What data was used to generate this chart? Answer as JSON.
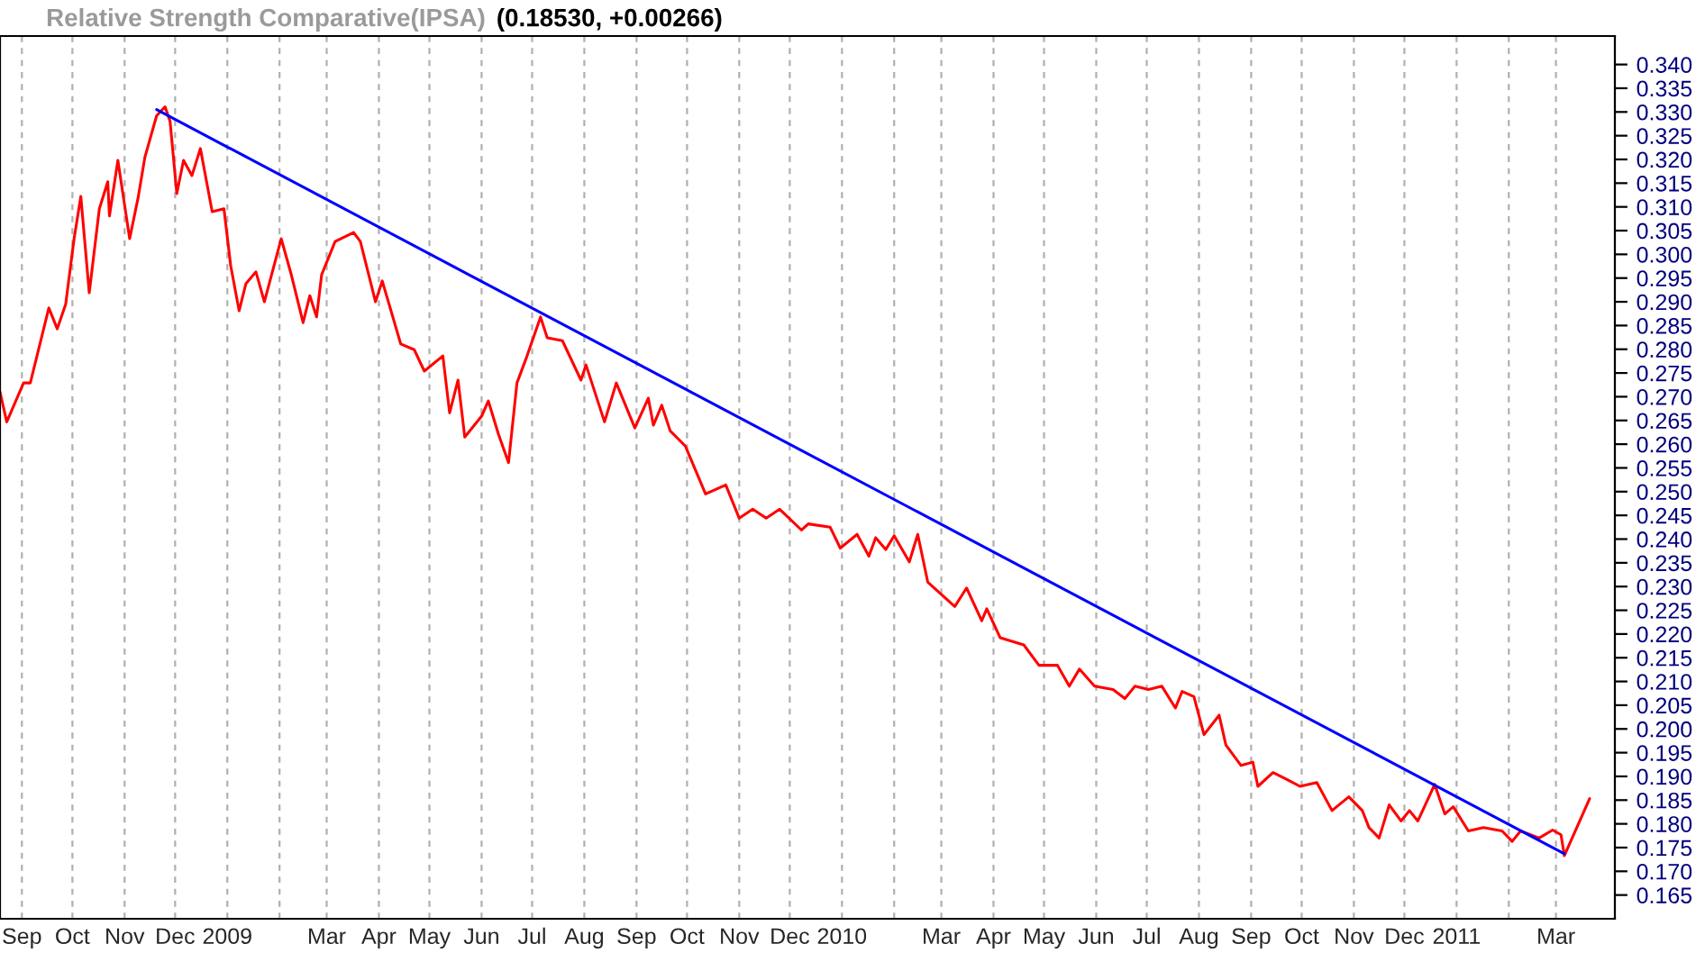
{
  "chart_data": {
    "type": "line",
    "title": "Relative Strength Comparative(IPSA)",
    "subtitle": "(0.18530, +0.00266)",
    "series": [
      {
        "color": "#ff0000",
        "x": [
          "2008-08-19",
          "2008-08-23",
          "2008-09-02",
          "2008-09-06",
          "2008-09-17",
          "2008-09-22",
          "2008-09-27",
          "2008-10-02",
          "2008-10-06",
          "2008-10-11",
          "2008-10-17",
          "2008-10-22",
          "2008-10-23",
          "2008-10-28",
          "2008-11-04",
          "2008-11-09",
          "2008-11-13",
          "2008-11-20",
          "2008-11-25",
          "2008-11-28",
          "2008-12-02",
          "2008-12-06",
          "2008-12-11",
          "2008-12-16",
          "2008-12-23",
          "2008-12-30",
          "2009-01-03",
          "2009-01-08",
          "2009-01-12",
          "2009-01-18",
          "2009-01-23",
          "2009-02-02",
          "2009-02-08",
          "2009-02-15",
          "2009-02-19",
          "2009-02-23",
          "2009-02-26",
          "2009-03-06",
          "2009-03-17",
          "2009-03-21",
          "2009-03-30",
          "2009-04-03",
          "2009-04-14",
          "2009-04-22",
          "2009-04-28",
          "2009-05-09",
          "2009-05-13",
          "2009-05-18",
          "2009-05-22",
          "2009-06-01",
          "2009-06-05",
          "2009-06-11",
          "2009-06-17",
          "2009-06-22",
          "2009-06-28",
          "2009-07-06",
          "2009-07-10",
          "2009-07-19",
          "2009-07-30",
          "2009-08-02",
          "2009-08-13",
          "2009-08-20",
          "2009-08-31",
          "2009-09-08",
          "2009-09-11",
          "2009-09-16",
          "2009-09-21",
          "2009-09-30",
          "2009-10-12",
          "2009-10-24",
          "2009-11-01",
          "2009-11-09",
          "2009-11-17",
          "2009-11-25",
          "2009-12-08",
          "2009-12-12",
          "2009-12-25",
          "2009-12-31",
          "2010-01-10",
          "2010-01-17",
          "2010-01-21",
          "2010-01-27",
          "2010-02-01",
          "2010-02-10",
          "2010-02-15",
          "2010-02-21",
          "2010-03-09",
          "2010-03-16",
          "2010-03-25",
          "2010-03-28",
          "2010-04-05",
          "2010-04-19",
          "2010-04-28",
          "2010-05-09",
          "2010-05-16",
          "2010-05-22",
          "2010-05-31",
          "2010-06-11",
          "2010-06-18",
          "2010-06-24",
          "2010-07-02",
          "2010-07-10",
          "2010-07-18",
          "2010-07-22",
          "2010-07-29",
          "2010-08-04",
          "2010-08-13",
          "2010-08-17",
          "2010-08-26",
          "2010-09-02",
          "2010-09-05",
          "2010-09-14",
          "2010-09-22",
          "2010-09-30",
          "2010-10-10",
          "2010-10-19",
          "2010-10-29",
          "2010-11-06",
          "2010-11-10",
          "2010-11-16",
          "2010-11-22",
          "2010-11-29",
          "2010-12-04",
          "2010-12-09",
          "2010-12-19",
          "2010-12-25",
          "2010-12-30",
          "2011-01-08",
          "2011-01-17",
          "2011-01-28",
          "2011-02-03",
          "2011-02-08",
          "2011-02-19",
          "2011-02-27",
          "2011-03-04",
          "2011-03-06",
          "2011-03-21"
        ],
        "values": [
          0.271,
          0.2647,
          0.2729,
          0.2729,
          0.2887,
          0.2843,
          0.2895,
          0.3033,
          0.3122,
          0.2919,
          0.3096,
          0.3153,
          0.3081,
          0.3198,
          0.3033,
          0.3119,
          0.3204,
          0.3292,
          0.3311,
          0.328,
          0.3128,
          0.3198,
          0.3166,
          0.3223,
          0.309,
          0.3096,
          0.2976,
          0.2881,
          0.2938,
          0.2963,
          0.29,
          0.3033,
          0.2957,
          0.2856,
          0.2913,
          0.2868,
          0.2957,
          0.3027,
          0.3046,
          0.3027,
          0.29,
          0.2944,
          0.2811,
          0.2799,
          0.2754,
          0.2786,
          0.2666,
          0.2735,
          0.2615,
          0.2659,
          0.2691,
          0.2621,
          0.2561,
          0.2729,
          0.2786,
          0.2868,
          0.2824,
          0.2818,
          0.2735,
          0.2767,
          0.2647,
          0.2729,
          0.2634,
          0.2697,
          0.264,
          0.2682,
          0.2628,
          0.2596,
          0.2495,
          0.2514,
          0.2444,
          0.2463,
          0.2444,
          0.2463,
          0.2419,
          0.2432,
          0.2425,
          0.2381,
          0.241,
          0.2364,
          0.2403,
          0.2378,
          0.2407,
          0.2352,
          0.241,
          0.2309,
          0.2258,
          0.2297,
          0.2228,
          0.2253,
          0.2192,
          0.2177,
          0.2134,
          0.2134,
          0.209,
          0.2126,
          0.209,
          0.2083,
          0.2064,
          0.209,
          0.2083,
          0.209,
          0.2044,
          0.2079,
          0.2068,
          0.1988,
          0.2029,
          0.1966,
          0.1923,
          0.193,
          0.1879,
          0.1908,
          0.1894,
          0.1879,
          0.1887,
          0.1828,
          0.1857,
          0.1828,
          0.1792,
          0.177,
          0.184,
          0.1806,
          0.1828,
          0.1806,
          0.1883,
          0.1821,
          0.1836,
          0.1785,
          0.1792,
          0.1785,
          0.1763,
          0.1785,
          0.177,
          0.1787,
          0.1777,
          0.1733,
          0.1853
        ]
      },
      {
        "color": "#0000ff",
        "x": [
          "2008-11-20",
          "2011-03-06"
        ],
        "values": [
          0.3305,
          0.1737
        ]
      }
    ],
    "xlim": [
      "2008-08-19",
      "2011-04-05"
    ],
    "xticks": [
      {
        "value": "2008-09-01",
        "label": "Sep"
      },
      {
        "value": "2008-10-01",
        "label": "Oct"
      },
      {
        "value": "2008-11-01",
        "label": "Nov"
      },
      {
        "value": "2008-12-01",
        "label": "Dec"
      },
      {
        "value": "2009-01-01",
        "label": "2009"
      },
      {
        "value": "2009-02-01",
        "label": null
      },
      {
        "value": "2009-03-01",
        "label": "Mar"
      },
      {
        "value": "2009-04-01",
        "label": "Apr"
      },
      {
        "value": "2009-05-01",
        "label": "May"
      },
      {
        "value": "2009-06-01",
        "label": "Jun"
      },
      {
        "value": "2009-07-01",
        "label": "Jul"
      },
      {
        "value": "2009-08-01",
        "label": "Aug"
      },
      {
        "value": "2009-09-01",
        "label": "Sep"
      },
      {
        "value": "2009-10-01",
        "label": "Oct"
      },
      {
        "value": "2009-11-01",
        "label": "Nov"
      },
      {
        "value": "2009-12-01",
        "label": "Dec"
      },
      {
        "value": "2010-01-01",
        "label": "2010"
      },
      {
        "value": "2010-02-01",
        "label": null
      },
      {
        "value": "2010-03-01",
        "label": "Mar"
      },
      {
        "value": "2010-04-01",
        "label": "Apr"
      },
      {
        "value": "2010-05-01",
        "label": "May"
      },
      {
        "value": "2010-06-01",
        "label": "Jun"
      },
      {
        "value": "2010-07-01",
        "label": "Jul"
      },
      {
        "value": "2010-08-01",
        "label": "Aug"
      },
      {
        "value": "2010-09-01",
        "label": "Sep"
      },
      {
        "value": "2010-10-01",
        "label": "Oct"
      },
      {
        "value": "2010-11-01",
        "label": "Nov"
      },
      {
        "value": "2010-12-01",
        "label": "Dec"
      },
      {
        "value": "2011-01-01",
        "label": "2011"
      },
      {
        "value": "2011-02-01",
        "label": null
      },
      {
        "value": "2011-03-01",
        "label": "Mar"
      }
    ],
    "ylim": [
      0.16,
      0.346
    ],
    "yticks": [
      0.165,
      {
        "value": 0.17,
        "label": "0.170"
      },
      0.175,
      {
        "value": 0.18,
        "label": "0.180"
      },
      0.185,
      {
        "value": 0.19,
        "label": "0.190"
      },
      0.195,
      {
        "value": 0.2,
        "label": "0.200"
      },
      0.205,
      {
        "value": 0.21,
        "label": "0.210"
      },
      0.215,
      {
        "value": 0.22,
        "label": "0.220"
      },
      0.225,
      {
        "value": 0.23,
        "label": "0.230"
      },
      0.235,
      {
        "value": 0.24,
        "label": "0.240"
      },
      0.245,
      {
        "value": 0.25,
        "label": "0.250"
      },
      0.255,
      {
        "value": 0.26,
        "label": "0.260"
      },
      0.265,
      {
        "value": 0.27,
        "label": "0.270"
      },
      0.275,
      {
        "value": 0.28,
        "label": "0.280"
      },
      0.285,
      {
        "value": 0.29,
        "label": "0.290"
      },
      0.295,
      {
        "value": 0.3,
        "label": "0.300"
      },
      0.305,
      {
        "value": 0.31,
        "label": "0.310"
      },
      0.315,
      {
        "value": 0.32,
        "label": "0.320"
      },
      0.325,
      {
        "value": 0.33,
        "label": "0.330"
      },
      0.335,
      {
        "value": 0.34,
        "label": "0.340"
      }
    ],
    "grid": "x",
    "marker": "none",
    "line_style": "solid"
  }
}
